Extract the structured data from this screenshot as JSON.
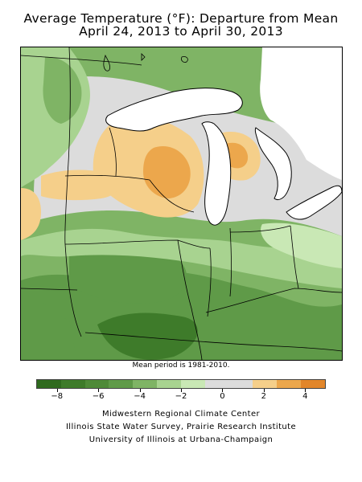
{
  "title": {
    "line1": "Average Temperature (°F): Departure from Mean",
    "line2": "April 24, 2013 to April 30, 2013"
  },
  "map": {
    "region": "Midwest United States",
    "colors": {
      "dark_green": "#3e7b2a",
      "green": "#5f9a48",
      "mid_green": "#7fb465",
      "light_green": "#a8d390",
      "pale_green": "#c9e8b5",
      "neutral": "#dcdcdc",
      "light_orange": "#f5cf8a",
      "orange": "#eca74c",
      "dark_orange": "#e2862a"
    }
  },
  "mean_note": "Mean period is 1981-2010.",
  "legend": {
    "colors": [
      "#2f6a1e",
      "#3e7b2a",
      "#4e8a38",
      "#5f9a48",
      "#7fb465",
      "#a8d390",
      "#c9e8b5",
      "#dcdcdc",
      "#dcdcdc",
      "#f5cf8a",
      "#eca74c",
      "#e2862a"
    ],
    "ticks": [
      {
        "value": -8,
        "label": "−8"
      },
      {
        "value": -6,
        "label": "−6"
      },
      {
        "value": -4,
        "label": "−4"
      },
      {
        "value": -2,
        "label": "−2"
      },
      {
        "value": 0,
        "label": "0"
      },
      {
        "value": 2,
        "label": "2"
      },
      {
        "value": 4,
        "label": "4"
      }
    ],
    "min": -9,
    "max": 5
  },
  "credits": {
    "line1": "Midwestern Regional Climate Center",
    "line2": "Illinois State Water Survey, Prairie Research Institute",
    "line3": "University of Illinois at Urbana-Champaign"
  }
}
